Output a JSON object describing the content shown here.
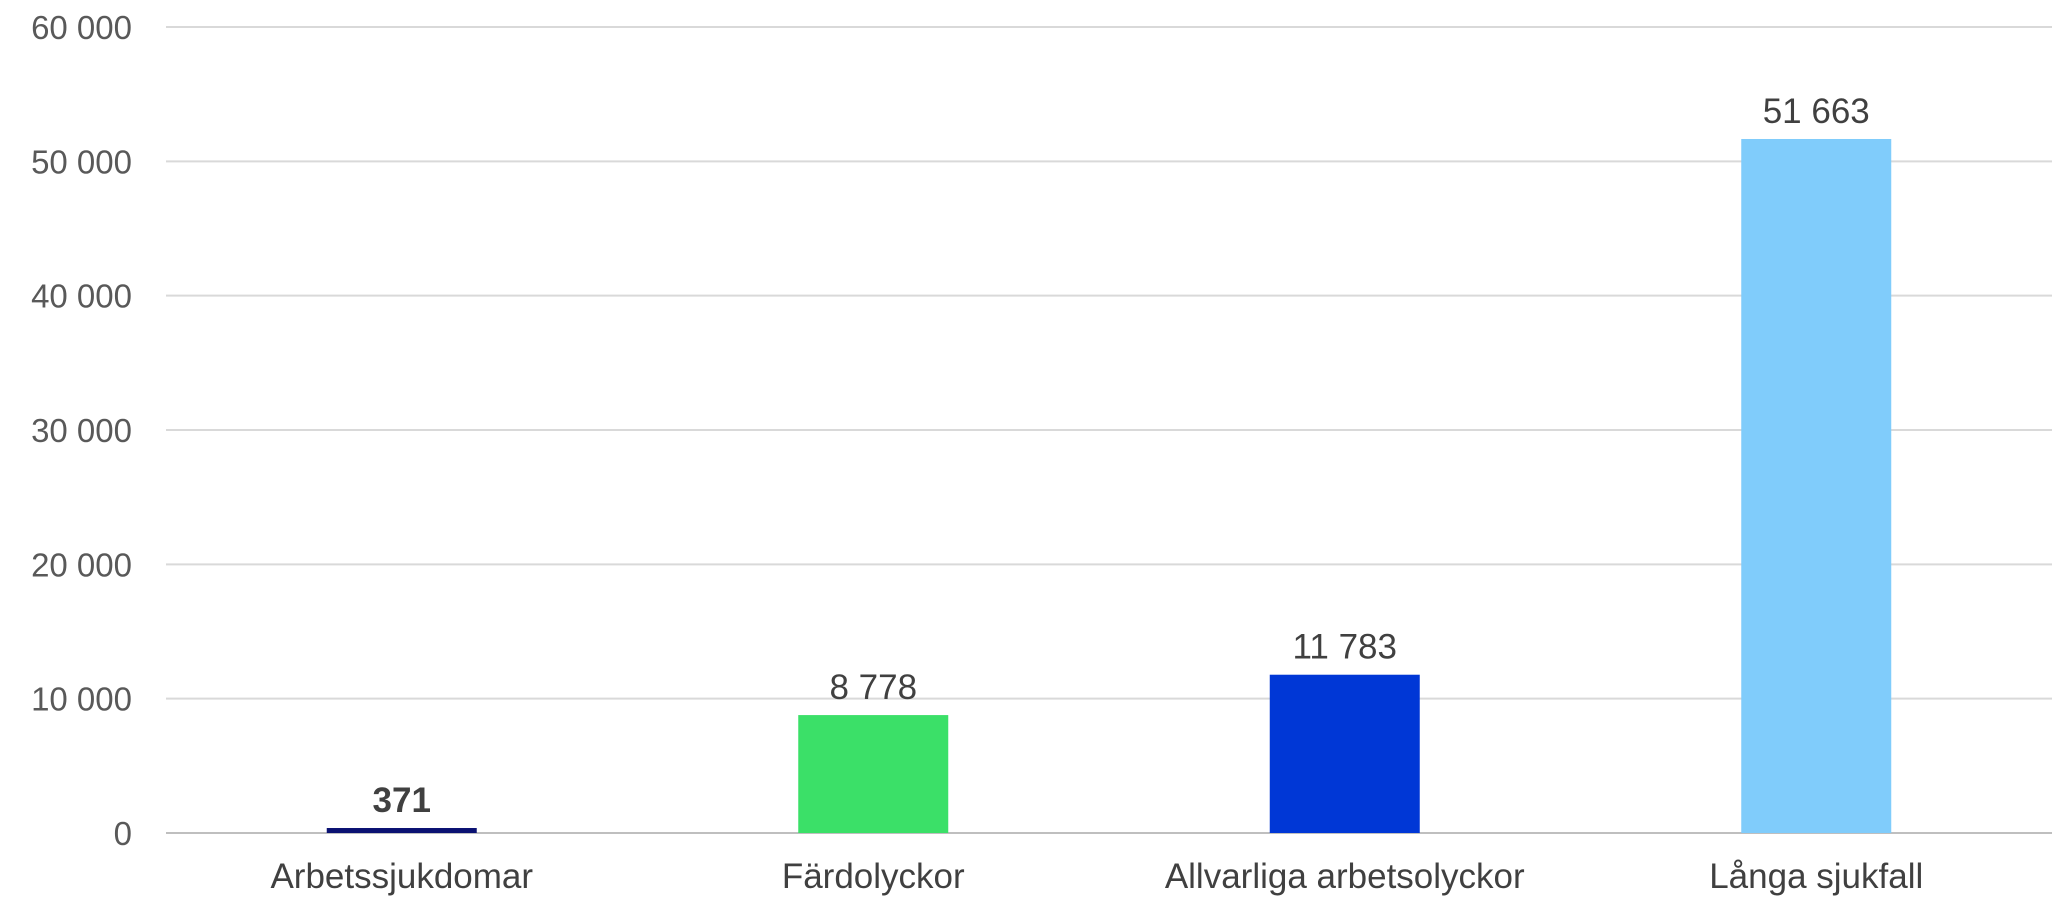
{
  "chart_data": {
    "type": "bar",
    "categories": [
      "Arbetssjukdomar",
      "Färdolyckor",
      "Allvarliga arbetsolyckor",
      "Långa sjukfall"
    ],
    "values": [
      371,
      8778,
      11783,
      51663
    ],
    "data_labels": [
      "371",
      "8 778",
      "11 783",
      "51 663"
    ],
    "bar_colors": [
      "#0a1172",
      "#3be068",
      "#0037d6",
      "#80ccfb"
    ],
    "bold_labels": [
      true,
      false,
      false,
      false
    ],
    "ylim": [
      0,
      60000
    ],
    "yticks": [
      0,
      10000,
      20000,
      30000,
      40000,
      50000,
      60000
    ],
    "ytick_labels": [
      "0",
      "10 000",
      "20 000",
      "30 000",
      "40 000",
      "50 000",
      "60 000"
    ],
    "grid": true,
    "legend": "none",
    "title": "",
    "xlabel": "",
    "ylabel": ""
  }
}
